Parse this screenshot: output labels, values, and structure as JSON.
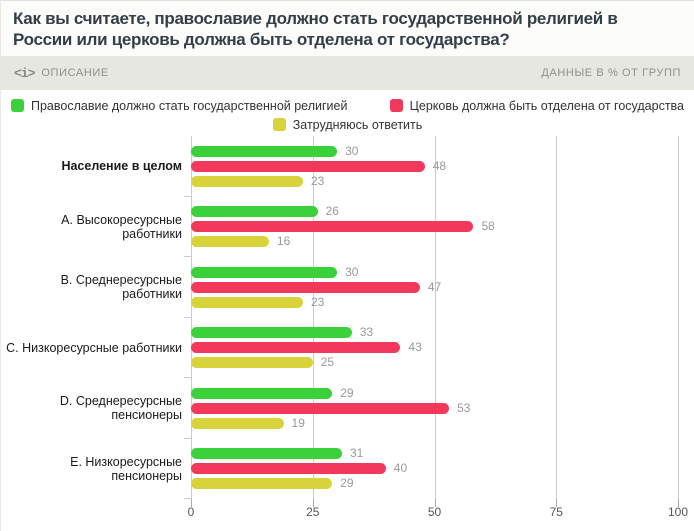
{
  "header": {
    "title": "Как вы считаете, православие должно стать государственной религией в России или церковь должна быть отделена от государства?"
  },
  "toolbar": {
    "code_icon_glyph": "<i>",
    "description_label": "ОПИСАНИЕ",
    "data_mode_label": "ДАННЫЕ В % ОТ ГРУПП"
  },
  "legend": {
    "items": [
      {
        "label": "Православие должно стать государственной религией",
        "color": "#3bd13b"
      },
      {
        "label": "Церковь должна быть отделена от государства",
        "color": "#f2395c"
      },
      {
        "label": "Затрудняюсь ответить",
        "color": "#d9d33b"
      }
    ]
  },
  "chart_data": {
    "type": "bar",
    "orientation": "horizontal",
    "title": "Как вы считаете, православие должно стать государственной религией в России или церковь должна быть отделена от государства?",
    "categories": [
      "Население в целом",
      "A. Высокоресурсные работники",
      "B. Среднересурсные работники",
      "C. Низкоресурсные работники",
      "D. Среднересурсные пенсионеры",
      "E. Низкоресурсные пенсионеры"
    ],
    "series": [
      {
        "name": "Православие должно стать государственной религией",
        "color": "#3bd13b",
        "values": [
          30,
          26,
          30,
          33,
          29,
          31
        ]
      },
      {
        "name": "Церковь должна быть отделена от государства",
        "color": "#f2395c",
        "values": [
          48,
          58,
          47,
          43,
          53,
          40
        ]
      },
      {
        "name": "Затрудняюсь ответить",
        "color": "#d9d33b",
        "values": [
          23,
          16,
          23,
          25,
          19,
          29
        ]
      }
    ],
    "xlim": [
      0,
      100
    ],
    "x_ticks": [
      0,
      25,
      50,
      75,
      100
    ],
    "grid": true,
    "legend_position": "top",
    "value_labels": true
  },
  "colors": {
    "title_text": "#333e47",
    "toolbar_bg": "#e7e7e2",
    "toolbar_text": "#90908a",
    "value_label": "#999999",
    "gridline": "#cccccc"
  }
}
